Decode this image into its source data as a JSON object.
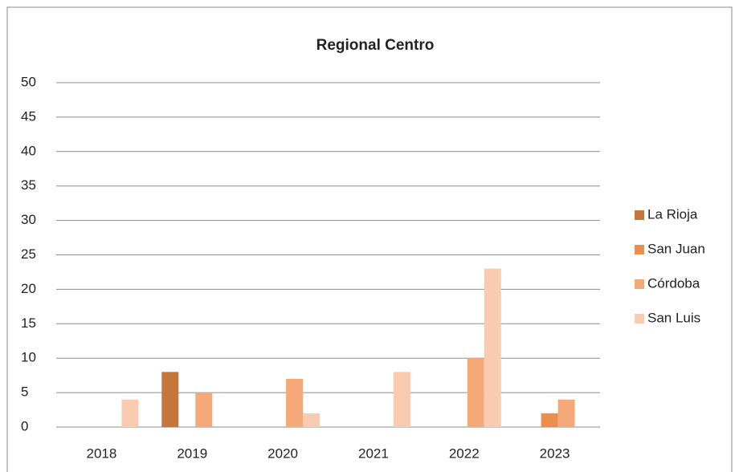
{
  "chart_data": {
    "type": "bar",
    "title": "Regional Centro",
    "categories": [
      "2018",
      "2019",
      "2020",
      "2021",
      "2022",
      "2023"
    ],
    "series": [
      {
        "name": "La Rioja",
        "color": "#c5773a",
        "values": [
          0,
          8,
          0,
          0,
          0,
          0
        ]
      },
      {
        "name": "San Juan",
        "color": "#ed8f4c",
        "values": [
          0,
          0,
          0,
          0,
          0,
          2
        ]
      },
      {
        "name": "Córdoba",
        "color": "#f5a878",
        "values": [
          0,
          5,
          7,
          0,
          10,
          4
        ]
      },
      {
        "name": "San Luis",
        "color": "#f9cbb0",
        "values": [
          4,
          0,
          2,
          8,
          23,
          0
        ]
      }
    ],
    "ylim": [
      0,
      50
    ],
    "yticks": [
      0,
      5,
      10,
      15,
      20,
      25,
      30,
      35,
      40,
      45,
      50
    ],
    "grid": true,
    "legend": "right"
  }
}
